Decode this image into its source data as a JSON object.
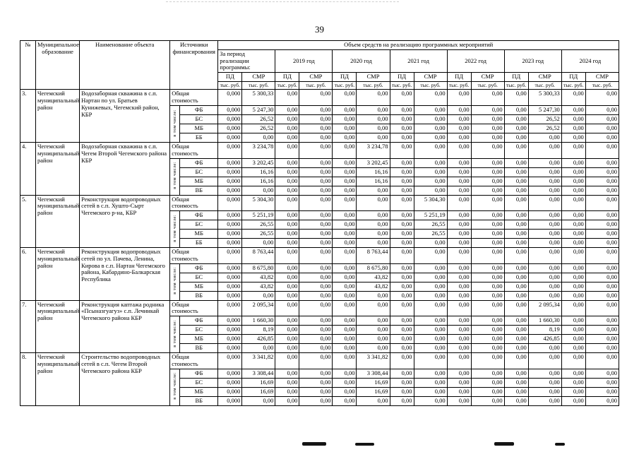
{
  "page": {
    "number": "39"
  },
  "table": {
    "headers": {
      "num": "№",
      "municipality": "Муниципальное образование",
      "object": "Наименование объекта",
      "sources": "Источники финансирования",
      "volume": "Объем средств на реализацию программных мероприятий",
      "period": "За период реализации программы:",
      "years": [
        "2019 год",
        "2020 год",
        "2021 год",
        "2022 год",
        "2023 год",
        "2024 год"
      ],
      "pd": "ПД",
      "smr": "СМР",
      "unit": "тыс. руб."
    },
    "in_total_label": "в том числе:",
    "total_label": "Общая стоимость",
    "rows": [
      {
        "num": "3.",
        "municipality": "Чегемский муниципальный район",
        "object": "Водозаборная скважина в с.п. Нартан по ул. Братьев Кунижевых, Чегемский район, КБР",
        "total": [
          "0,000",
          "5 300,33",
          "0,00",
          "0,00",
          "0,00",
          "0,00",
          "0,00",
          "0,00",
          "0,00",
          "0,00",
          "0,00",
          "5 300,33",
          "0,00",
          "0,00"
        ],
        "sources": [
          {
            "label": "ФБ",
            "values": [
              "0,000",
              "5 247,30",
              "0,00",
              "0,00",
              "0,00",
              "0,00",
              "0,00",
              "0,00",
              "0,00",
              "0,00",
              "0,00",
              "5 247,30",
              "0,00",
              "0,00"
            ]
          },
          {
            "label": "БС",
            "values": [
              "0,000",
              "26,52",
              "0,00",
              "0,00",
              "0,00",
              "0,00",
              "0,00",
              "0,00",
              "0,00",
              "0,00",
              "0,00",
              "26,52",
              "0,00",
              "0,00"
            ]
          },
          {
            "label": "МБ",
            "values": [
              "0,000",
              "26,52",
              "0,00",
              "0,00",
              "0,00",
              "0,00",
              "0,00",
              "0,00",
              "0,00",
              "0,00",
              "0,00",
              "26,52",
              "0,00",
              "0,00"
            ]
          },
          {
            "label": "ББ",
            "values": [
              "0,000",
              "0,00",
              "0,00",
              "0,00",
              "0,00",
              "0,00",
              "0,00",
              "0,00",
              "0,00",
              "0,00",
              "0,00",
              "0,00",
              "0,00",
              "0,00"
            ]
          }
        ]
      },
      {
        "num": "4.",
        "municipality": "Чегемский муниципальный район",
        "object": "Водозаборная скважина в с.п. Чегем Второй Чегемского района КБР",
        "total": [
          "0,000",
          "3 234,78",
          "0,00",
          "0,00",
          "0,00",
          "3 234,78",
          "0,00",
          "0,00",
          "0,00",
          "0,00",
          "0,00",
          "0,00",
          "0,00",
          "0,00"
        ],
        "sources": [
          {
            "label": "ФБ",
            "values": [
              "0,000",
              "3 202,45",
              "0,00",
              "0,00",
              "0,00",
              "3 202,45",
              "0,00",
              "0,00",
              "0,00",
              "0,00",
              "0,00",
              "0,00",
              "0,00",
              "0,00"
            ]
          },
          {
            "label": "БС",
            "values": [
              "0,000",
              "16,16",
              "0,00",
              "0,00",
              "0,00",
              "16,16",
              "0,00",
              "0,00",
              "0,00",
              "0,00",
              "0,00",
              "0,00",
              "0,00",
              "0,00"
            ]
          },
          {
            "label": "МБ",
            "values": [
              "0,000",
              "16,16",
              "0,00",
              "0,00",
              "0,00",
              "16,16",
              "0,00",
              "0,00",
              "0,00",
              "0,00",
              "0,00",
              "0,00",
              "0,00",
              "0,00"
            ]
          },
          {
            "label": "ВБ",
            "values": [
              "0,000",
              "0,00",
              "0,00",
              "0,00",
              "0,00",
              "0,00",
              "0,00",
              "0,00",
              "0,00",
              "0,00",
              "0,00",
              "0,00",
              "0,00",
              "0,00"
            ]
          }
        ]
      },
      {
        "num": "5.",
        "municipality": "Чегемский муниципальный район",
        "object": "Реконструкция водопроводных сетей в с.п. Хушто-Сырт Чегемского р-на, КБР",
        "total": [
          "0,000",
          "5 304,30",
          "0,00",
          "0,00",
          "0,00",
          "0,00",
          "0,00",
          "5 304,30",
          "0,00",
          "0,00",
          "0,00",
          "0,00",
          "0,00",
          "0,00"
        ],
        "sources": [
          {
            "label": "ФБ",
            "values": [
              "0,000",
              "5 251,19",
              "0,00",
              "0,00",
              "0,00",
              "0,00",
              "0,00",
              "5 251,19",
              "0,00",
              "0,00",
              "0,00",
              "0,00",
              "0,00",
              "0,00"
            ]
          },
          {
            "label": "БС",
            "values": [
              "0,000",
              "26,55",
              "0,00",
              "0,00",
              "0,00",
              "0,00",
              "0,00",
              "26,55",
              "0,00",
              "0,00",
              "0,00",
              "0,00",
              "0,00",
              "0,00"
            ]
          },
          {
            "label": "МБ",
            "values": [
              "0,000",
              "26,55",
              "0,00",
              "0,00",
              "0,00",
              "0,00",
              "0,00",
              "26,55",
              "0,00",
              "0,00",
              "0,00",
              "0,00",
              "0,00",
              "0,00"
            ]
          },
          {
            "label": "ББ",
            "values": [
              "0,000",
              "0,00",
              "0,00",
              "0,00",
              "0,00",
              "0,00",
              "0,00",
              "0,00",
              "0,00",
              "0,00",
              "0,00",
              "0,00",
              "0,00",
              "0,00"
            ]
          }
        ]
      },
      {
        "num": "6.",
        "municipality": "Чегемский муниципальный район",
        "object": "Реконструкция водопроводных сетей по ул. Пачева, Ленина, Кирова в с.п. Нартан Чегемского района, Кабардино-Балкарская Республика",
        "total": [
          "0,000",
          "8 763,44",
          "0,00",
          "0,00",
          "0,00",
          "8 763,44",
          "0,00",
          "0,00",
          "0,00",
          "0,00",
          "0,00",
          "0,00",
          "0,00",
          "0,00"
        ],
        "sources": [
          {
            "label": "ФБ",
            "values": [
              "0,000",
              "8 675,80",
              "0,00",
              "0,00",
              "0,00",
              "8 675,80",
              "0,00",
              "0,00",
              "0,00",
              "0,00",
              "0,00",
              "0,00",
              "0,00",
              "0,00"
            ]
          },
          {
            "label": "БС",
            "values": [
              "0,000",
              "43,82",
              "0,00",
              "0,00",
              "0,00",
              "43,82",
              "0,00",
              "0,00",
              "0,00",
              "0,00",
              "0,00",
              "0,00",
              "0,00",
              "0,00"
            ]
          },
          {
            "label": "МБ",
            "values": [
              "0,000",
              "43,82",
              "0,00",
              "0,00",
              "0,00",
              "43,82",
              "0,00",
              "0,00",
              "0,00",
              "0,00",
              "0,00",
              "0,00",
              "0,00",
              "0,00"
            ]
          },
          {
            "label": "ВБ",
            "values": [
              "0,000",
              "0,00",
              "0,00",
              "0,00",
              "0,00",
              "0,00",
              "0,00",
              "0,00",
              "0,00",
              "0,00",
              "0,00",
              "0,00",
              "0,00",
              "0,00"
            ]
          }
        ]
      },
      {
        "num": "7.",
        "municipality": "Чегемский муниципальный район",
        "object": "Реконструкция каптажа родника «Псыназгуагуз» с.п. Лечинкай Чегемского района КБР",
        "total": [
          "0,000",
          "2 095,34",
          "0,00",
          "0,00",
          "0,00",
          "0,00",
          "0,00",
          "0,00",
          "0,00",
          "0,00",
          "0,00",
          "2 095,34",
          "0,00",
          "0,00"
        ],
        "sources": [
          {
            "label": "ФБ",
            "values": [
              "0,000",
              "1 660,30",
              "0,00",
              "0,00",
              "0,00",
              "0,00",
              "0,00",
              "0,00",
              "0,00",
              "0,00",
              "0,00",
              "1 660,30",
              "0,00",
              "0,00"
            ]
          },
          {
            "label": "БС",
            "values": [
              "0,000",
              "8,19",
              "0,00",
              "0,00",
              "0,00",
              "0,00",
              "0,00",
              "0,00",
              "0,00",
              "0,00",
              "0,00",
              "8,19",
              "0,00",
              "0,00"
            ]
          },
          {
            "label": "МБ",
            "values": [
              "0,000",
              "426,85",
              "0,00",
              "0,00",
              "0,00",
              "0,00",
              "0,00",
              "0,00",
              "0,00",
              "0,00",
              "0,00",
              "426,85",
              "0,00",
              "0,00"
            ]
          },
          {
            "label": "ВБ",
            "values": [
              "0,000",
              "0,00",
              "0,00",
              "0,00",
              "0,00",
              "0,00",
              "0,00",
              "0,00",
              "0,00",
              "0,00",
              "0,00",
              "0,00",
              "0,00",
              "0,00"
            ]
          }
        ]
      },
      {
        "num": "8.",
        "municipality": "Чегемский муниципальный район",
        "object": "Строительство водопроводных сетей в с.п. Чегем Второй Чегемского района КБР",
        "total": [
          "0,000",
          "3 341,82",
          "0,00",
          "0,00",
          "0,00",
          "3 341,82",
          "0,00",
          "0,00",
          "0,00",
          "0,00",
          "0,00",
          "0,00",
          "0,00",
          "0,00"
        ],
        "sources": [
          {
            "label": "ФБ",
            "values": [
              "0,000",
              "3 308,44",
              "0,00",
              "0,00",
              "0,00",
              "3 308,44",
              "0,00",
              "0,00",
              "0,00",
              "0,00",
              "0,00",
              "0,00",
              "0,00",
              "0,00"
            ]
          },
          {
            "label": "БС",
            "values": [
              "0,000",
              "16,69",
              "0,00",
              "0,00",
              "0,00",
              "16,69",
              "0,00",
              "0,00",
              "0,00",
              "0,00",
              "0,00",
              "0,00",
              "0,00",
              "0,00"
            ]
          },
          {
            "label": "МБ",
            "values": [
              "0,000",
              "16,69",
              "0,00",
              "0,00",
              "0,00",
              "16,69",
              "0,00",
              "0,00",
              "0,00",
              "0,00",
              "0,00",
              "0,00",
              "0,00",
              "0,00"
            ]
          },
          {
            "label": "ВБ",
            "values": [
              "0,000",
              "0,00",
              "0,00",
              "0,00",
              "0,00",
              "0,00",
              "0,00",
              "0,00",
              "0,00",
              "0,00",
              "0,00",
              "0,00",
              "0,00",
              "0,00"
            ]
          }
        ]
      }
    ]
  }
}
